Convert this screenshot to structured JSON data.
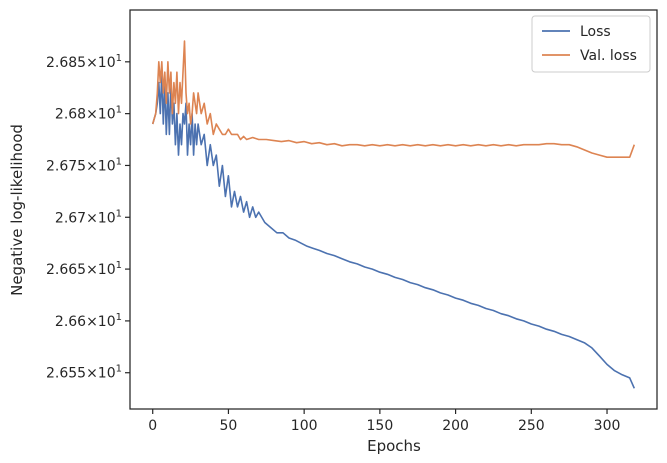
{
  "chart_data": {
    "type": "line",
    "title": "",
    "xlabel": "Epochs",
    "ylabel": "Negative log-likelihood",
    "xlim": [
      -15,
      333
    ],
    "ylim": [
      26.515,
      26.9
    ],
    "x_ticks": [
      0,
      50,
      100,
      150,
      200,
      250,
      300
    ],
    "y_ticks": [
      26.55,
      26.6,
      26.65,
      26.7,
      26.75,
      26.8,
      26.85
    ],
    "y_tick_labels": [
      {
        "mantissa": "2.655",
        "exponent": "1"
      },
      {
        "mantissa": "2.66",
        "exponent": "1"
      },
      {
        "mantissa": "2.665",
        "exponent": "1"
      },
      {
        "mantissa": "2.67",
        "exponent": "1"
      },
      {
        "mantissa": "2.675",
        "exponent": "1"
      },
      {
        "mantissa": "2.68",
        "exponent": "1"
      },
      {
        "mantissa": "2.685",
        "exponent": "1"
      }
    ],
    "grid": false,
    "legend_position": "top-right",
    "series": [
      {
        "name": "Loss",
        "color": "#4c72b0",
        "points": [
          [
            0,
            26.79
          ],
          [
            2,
            26.8
          ],
          [
            3,
            26.81
          ],
          [
            4,
            26.83
          ],
          [
            5,
            26.8
          ],
          [
            6,
            26.84
          ],
          [
            7,
            26.79
          ],
          [
            8,
            26.83
          ],
          [
            9,
            26.78
          ],
          [
            10,
            26.82
          ],
          [
            11,
            26.78
          ],
          [
            12,
            26.83
          ],
          [
            13,
            26.79
          ],
          [
            14,
            26.81
          ],
          [
            15,
            26.77
          ],
          [
            16,
            26.8
          ],
          [
            17,
            26.76
          ],
          [
            18,
            26.79
          ],
          [
            19,
            26.77
          ],
          [
            20,
            26.8
          ],
          [
            21,
            26.79
          ],
          [
            22,
            26.81
          ],
          [
            23,
            26.76
          ],
          [
            24,
            26.79
          ],
          [
            25,
            26.77
          ],
          [
            26,
            26.8
          ],
          [
            27,
            26.76
          ],
          [
            28,
            26.79
          ],
          [
            29,
            26.77
          ],
          [
            30,
            26.79
          ],
          [
            32,
            26.77
          ],
          [
            34,
            26.78
          ],
          [
            36,
            26.75
          ],
          [
            38,
            26.77
          ],
          [
            40,
            26.75
          ],
          [
            42,
            26.76
          ],
          [
            44,
            26.73
          ],
          [
            46,
            26.75
          ],
          [
            48,
            26.72
          ],
          [
            50,
            26.74
          ],
          [
            52,
            26.71
          ],
          [
            54,
            26.725
          ],
          [
            56,
            26.71
          ],
          [
            58,
            26.72
          ],
          [
            60,
            26.705
          ],
          [
            62,
            26.715
          ],
          [
            64,
            26.7
          ],
          [
            66,
            26.71
          ],
          [
            68,
            26.7
          ],
          [
            70,
            26.705
          ],
          [
            74,
            26.695
          ],
          [
            78,
            26.69
          ],
          [
            82,
            26.685
          ],
          [
            86,
            26.685
          ],
          [
            90,
            26.68
          ],
          [
            94,
            26.678
          ],
          [
            98,
            26.675
          ],
          [
            102,
            26.672
          ],
          [
            106,
            26.67
          ],
          [
            110,
            26.668
          ],
          [
            115,
            26.665
          ],
          [
            120,
            26.663
          ],
          [
            125,
            26.66
          ],
          [
            130,
            26.657
          ],
          [
            135,
            26.655
          ],
          [
            140,
            26.652
          ],
          [
            145,
            26.65
          ],
          [
            150,
            26.647
          ],
          [
            155,
            26.645
          ],
          [
            160,
            26.642
          ],
          [
            165,
            26.64
          ],
          [
            170,
            26.637
          ],
          [
            175,
            26.635
          ],
          [
            180,
            26.632
          ],
          [
            185,
            26.63
          ],
          [
            190,
            26.627
          ],
          [
            195,
            26.625
          ],
          [
            200,
            26.622
          ],
          [
            205,
            26.62
          ],
          [
            210,
            26.617
          ],
          [
            215,
            26.615
          ],
          [
            220,
            26.612
          ],
          [
            225,
            26.61
          ],
          [
            230,
            26.607
          ],
          [
            235,
            26.605
          ],
          [
            240,
            26.602
          ],
          [
            245,
            26.6
          ],
          [
            250,
            26.597
          ],
          [
            255,
            26.595
          ],
          [
            260,
            26.592
          ],
          [
            265,
            26.59
          ],
          [
            270,
            26.587
          ],
          [
            275,
            26.585
          ],
          [
            280,
            26.582
          ],
          [
            285,
            26.579
          ],
          [
            290,
            26.574
          ],
          [
            295,
            26.566
          ],
          [
            300,
            26.558
          ],
          [
            305,
            26.552
          ],
          [
            310,
            26.548
          ],
          [
            315,
            26.545
          ],
          [
            318,
            26.535
          ]
        ]
      },
      {
        "name": "Val. loss",
        "color": "#dd8452",
        "points": [
          [
            0,
            26.79
          ],
          [
            2,
            26.8
          ],
          [
            3,
            26.82
          ],
          [
            4,
            26.85
          ],
          [
            5,
            26.83
          ],
          [
            6,
            26.85
          ],
          [
            7,
            26.82
          ],
          [
            8,
            26.84
          ],
          [
            9,
            26.81
          ],
          [
            10,
            26.85
          ],
          [
            11,
            26.82
          ],
          [
            12,
            26.84
          ],
          [
            13,
            26.8
          ],
          [
            14,
            26.83
          ],
          [
            15,
            26.81
          ],
          [
            16,
            26.84
          ],
          [
            17,
            26.8
          ],
          [
            18,
            26.83
          ],
          [
            19,
            26.81
          ],
          [
            20,
            26.84
          ],
          [
            21,
            26.87
          ],
          [
            22,
            26.82
          ],
          [
            23,
            26.8
          ],
          [
            24,
            26.81
          ],
          [
            25,
            26.79
          ],
          [
            26,
            26.8
          ],
          [
            27,
            26.82
          ],
          [
            28,
            26.81
          ],
          [
            29,
            26.8
          ],
          [
            30,
            26.82
          ],
          [
            32,
            26.8
          ],
          [
            34,
            26.81
          ],
          [
            36,
            26.79
          ],
          [
            38,
            26.8
          ],
          [
            40,
            26.78
          ],
          [
            42,
            26.79
          ],
          [
            44,
            26.785
          ],
          [
            46,
            26.78
          ],
          [
            48,
            26.78
          ],
          [
            50,
            26.785
          ],
          [
            52,
            26.78
          ],
          [
            54,
            26.78
          ],
          [
            56,
            26.78
          ],
          [
            58,
            26.775
          ],
          [
            60,
            26.778
          ],
          [
            62,
            26.775
          ],
          [
            66,
            26.777
          ],
          [
            70,
            26.775
          ],
          [
            75,
            26.775
          ],
          [
            80,
            26.774
          ],
          [
            85,
            26.773
          ],
          [
            90,
            26.774
          ],
          [
            95,
            26.772
          ],
          [
            100,
            26.773
          ],
          [
            105,
            26.771
          ],
          [
            110,
            26.772
          ],
          [
            115,
            26.77
          ],
          [
            120,
            26.771
          ],
          [
            125,
            26.769
          ],
          [
            130,
            26.77
          ],
          [
            135,
            26.77
          ],
          [
            140,
            26.769
          ],
          [
            145,
            26.77
          ],
          [
            150,
            26.769
          ],
          [
            155,
            26.77
          ],
          [
            160,
            26.769
          ],
          [
            165,
            26.77
          ],
          [
            170,
            26.769
          ],
          [
            175,
            26.77
          ],
          [
            180,
            26.769
          ],
          [
            185,
            26.77
          ],
          [
            190,
            26.769
          ],
          [
            195,
            26.77
          ],
          [
            200,
            26.769
          ],
          [
            205,
            26.77
          ],
          [
            210,
            26.769
          ],
          [
            215,
            26.77
          ],
          [
            220,
            26.769
          ],
          [
            225,
            26.77
          ],
          [
            230,
            26.769
          ],
          [
            235,
            26.77
          ],
          [
            240,
            26.769
          ],
          [
            245,
            26.77
          ],
          [
            250,
            26.77
          ],
          [
            255,
            26.77
          ],
          [
            260,
            26.771
          ],
          [
            265,
            26.771
          ],
          [
            270,
            26.77
          ],
          [
            275,
            26.77
          ],
          [
            280,
            26.768
          ],
          [
            285,
            26.765
          ],
          [
            290,
            26.762
          ],
          [
            295,
            26.76
          ],
          [
            300,
            26.758
          ],
          [
            305,
            26.758
          ],
          [
            310,
            26.758
          ],
          [
            315,
            26.758
          ],
          [
            318,
            26.77
          ]
        ]
      }
    ]
  }
}
